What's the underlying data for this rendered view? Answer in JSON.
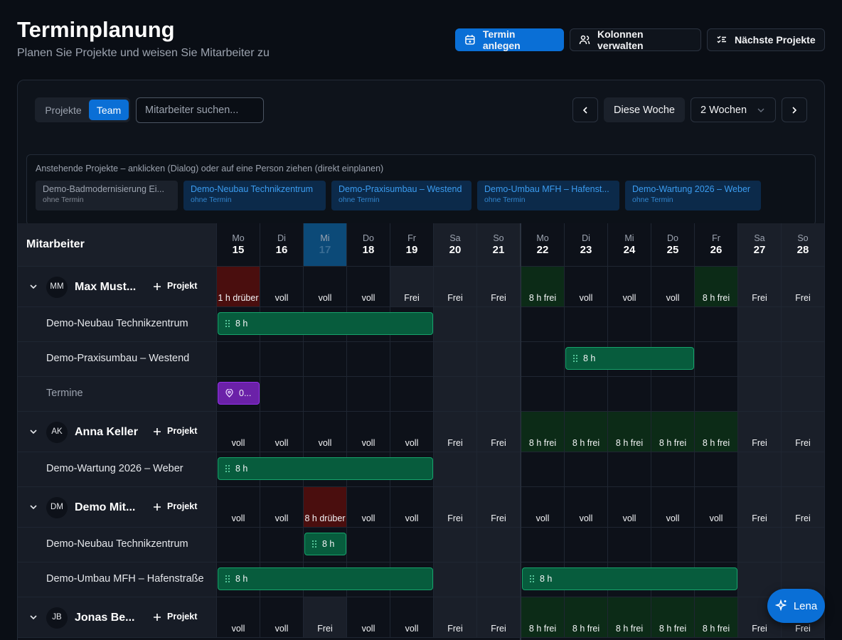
{
  "header": {
    "title": "Terminplanung",
    "subtitle": "Planen Sie Projekte und weisen Sie Mitarbeiter zu",
    "actions": [
      "Termin anlegen",
      "Kolonnen verwalten",
      "Nächste Projekte"
    ]
  },
  "toolbar": {
    "view_toggle": [
      "Projekte",
      "Team"
    ],
    "active_view": 1,
    "search_placeholder": "Mitarbeiter suchen...",
    "today_button": "Diese Woche",
    "range": "2 Wochen"
  },
  "pending": {
    "hint": "Anstehende Projekte – anklicken (Dialog) oder auf eine Person ziehen (direkt einplanen)",
    "items": [
      {
        "name": "Demo-Badmodernisierung Ei...",
        "sub": "ohne Termin",
        "highlight": false
      },
      {
        "name": "Demo-Neubau Technikzentrum",
        "sub": "ohne Termin",
        "highlight": true
      },
      {
        "name": "Demo-Praxisumbau – Westend",
        "sub": "ohne Termin",
        "highlight": true
      },
      {
        "name": "Demo-Umbau MFH – Hafenst...",
        "sub": "ohne Termin",
        "highlight": true
      },
      {
        "name": "Demo-Wartung 2026 – Weber",
        "sub": "ohne Termin",
        "highlight": true
      }
    ]
  },
  "grid": {
    "column_label": "Mitarbeiter",
    "days": [
      {
        "dow": "Mo",
        "day": 15
      },
      {
        "dow": "Di",
        "day": 16
      },
      {
        "dow": "Mi",
        "day": 17,
        "today": true
      },
      {
        "dow": "Do",
        "day": 18
      },
      {
        "dow": "Fr",
        "day": 19
      },
      {
        "dow": "Sa",
        "day": 20,
        "weekend": true
      },
      {
        "dow": "So",
        "day": 21,
        "weekend": true
      },
      {
        "dow": "Mo",
        "day": 22
      },
      {
        "dow": "Di",
        "day": 23
      },
      {
        "dow": "Mi",
        "day": 24
      },
      {
        "dow": "Do",
        "day": 25
      },
      {
        "dow": "Fr",
        "day": 26
      },
      {
        "dow": "Sa",
        "day": 27,
        "weekend": true
      },
      {
        "dow": "So",
        "day": 28,
        "weekend": true
      }
    ],
    "employees": [
      {
        "initials": "MM",
        "name": "Max Must...",
        "add": "Projekt",
        "status": [
          {
            "text": "1 h drüber",
            "tone": "over"
          },
          {
            "text": "voll",
            "tone": "full"
          },
          {
            "text": "voll",
            "tone": "full"
          },
          {
            "text": "voll",
            "tone": "full"
          },
          {
            "text": "Frei",
            "tone": "off"
          },
          {
            "text": "Frei",
            "tone": "off"
          },
          {
            "text": "Frei",
            "tone": "off"
          },
          {
            "text": "8 h frei",
            "tone": "free"
          },
          {
            "text": "voll",
            "tone": "full"
          },
          {
            "text": "voll",
            "tone": "full"
          },
          {
            "text": "voll",
            "tone": "full"
          },
          {
            "text": "8 h frei",
            "tone": "free"
          },
          {
            "text": "Frei",
            "tone": "off"
          },
          {
            "text": "Frei",
            "tone": "off"
          }
        ],
        "rows": [
          {
            "label": "Demo-Neubau Technikzentrum",
            "bars": [
              {
                "from": 15,
                "to": 19,
                "label": "8 h",
                "kind": "project"
              }
            ]
          },
          {
            "label": "Demo-Praxisumbau – Westend",
            "bars": [
              {
                "from": 23,
                "to": 25,
                "label": "8 h",
                "kind": "project"
              }
            ]
          },
          {
            "label": "Termine",
            "muted": true,
            "bars": [
              {
                "from": 15,
                "to": 15,
                "label": "0...",
                "kind": "appointment"
              }
            ]
          }
        ]
      },
      {
        "initials": "AK",
        "name": "Anna Keller",
        "add": "Projekt",
        "status": [
          {
            "text": "voll",
            "tone": "full"
          },
          {
            "text": "voll",
            "tone": "full"
          },
          {
            "text": "voll",
            "tone": "full"
          },
          {
            "text": "voll",
            "tone": "full"
          },
          {
            "text": "voll",
            "tone": "full"
          },
          {
            "text": "Frei",
            "tone": "off"
          },
          {
            "text": "Frei",
            "tone": "off"
          },
          {
            "text": "8 h frei",
            "tone": "free"
          },
          {
            "text": "8 h frei",
            "tone": "free"
          },
          {
            "text": "8 h frei",
            "tone": "free"
          },
          {
            "text": "8 h frei",
            "tone": "free"
          },
          {
            "text": "8 h frei",
            "tone": "free"
          },
          {
            "text": "Frei",
            "tone": "off"
          },
          {
            "text": "Frei",
            "tone": "off"
          }
        ],
        "rows": [
          {
            "label": "Demo-Wartung 2026 – Weber",
            "bars": [
              {
                "from": 15,
                "to": 19,
                "label": "8 h",
                "kind": "project"
              }
            ]
          }
        ]
      },
      {
        "initials": "DM",
        "name": "Demo Mit...",
        "add": "Projekt",
        "status": [
          {
            "text": "voll",
            "tone": "full"
          },
          {
            "text": "voll",
            "tone": "full"
          },
          {
            "text": "8 h drüber",
            "tone": "over"
          },
          {
            "text": "voll",
            "tone": "full"
          },
          {
            "text": "voll",
            "tone": "full"
          },
          {
            "text": "Frei",
            "tone": "off"
          },
          {
            "text": "Frei",
            "tone": "off"
          },
          {
            "text": "voll",
            "tone": "full"
          },
          {
            "text": "voll",
            "tone": "full"
          },
          {
            "text": "voll",
            "tone": "full"
          },
          {
            "text": "voll",
            "tone": "full"
          },
          {
            "text": "voll",
            "tone": "full"
          },
          {
            "text": "Frei",
            "tone": "off"
          },
          {
            "text": "Frei",
            "tone": "off"
          }
        ],
        "rows": [
          {
            "label": "Demo-Neubau Technikzentrum",
            "bars": [
              {
                "from": 17,
                "to": 17,
                "label": "8 h",
                "kind": "project"
              }
            ]
          },
          {
            "label": "Demo-Umbau MFH – Hafenstraße",
            "bars": [
              {
                "from": 15,
                "to": 19,
                "label": "8 h",
                "kind": "project"
              },
              {
                "from": 22,
                "to": 26,
                "label": "8 h",
                "kind": "project"
              }
            ]
          }
        ]
      },
      {
        "initials": "JB",
        "name": "Jonas Be...",
        "add": "Projekt",
        "status": [
          {
            "text": "voll",
            "tone": "full"
          },
          {
            "text": "voll",
            "tone": "full"
          },
          {
            "text": "Frei",
            "tone": "off"
          },
          {
            "text": "voll",
            "tone": "full"
          },
          {
            "text": "voll",
            "tone": "full"
          },
          {
            "text": "Frei",
            "tone": "off"
          },
          {
            "text": "Frei",
            "tone": "off"
          },
          {
            "text": "8 h frei",
            "tone": "free"
          },
          {
            "text": "8 h frei",
            "tone": "free"
          },
          {
            "text": "8 h frei",
            "tone": "free"
          },
          {
            "text": "8 h frei",
            "tone": "free"
          },
          {
            "text": "8 h frei",
            "tone": "free"
          },
          {
            "text": "Frei",
            "tone": "off"
          },
          {
            "text": "Frei",
            "tone": "off"
          }
        ],
        "rows": []
      }
    ]
  },
  "assistant": {
    "label": "Lena"
  }
}
